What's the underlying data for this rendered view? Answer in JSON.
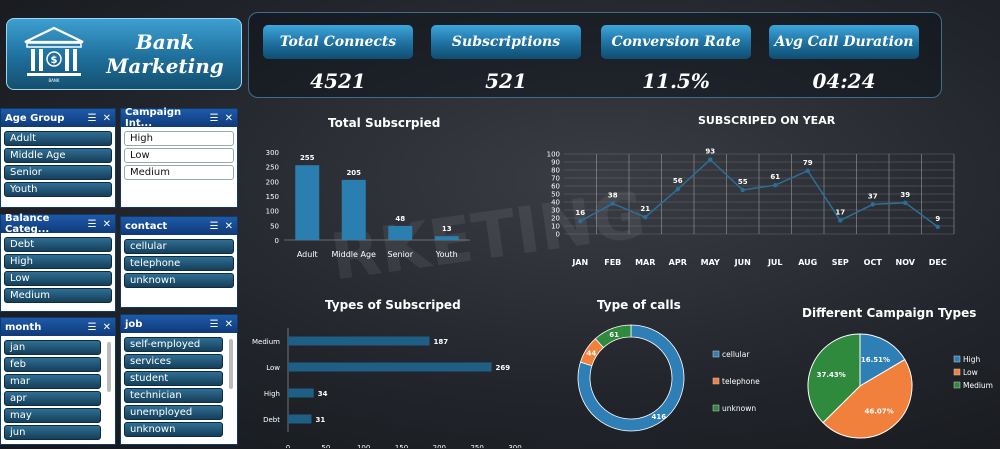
{
  "header": {
    "title_line1": "Bank",
    "title_line2": "Marketing",
    "logo_caption": "BANK"
  },
  "kpis": [
    {
      "label": "Total Connects",
      "value": "4521"
    },
    {
      "label": "Subscriptions",
      "value": "521"
    },
    {
      "label": "Conversion Rate",
      "value": "11.5%"
    },
    {
      "label": "Avg Call Duration",
      "value": "04:24"
    }
  ],
  "slicers": {
    "age_group": {
      "title": "Age Group",
      "items": [
        "Adult",
        "Middle Age",
        "Senior",
        "Youth"
      ]
    },
    "campaign": {
      "title": "Campaign Int...",
      "items": [
        "High",
        "Low",
        "Medium"
      ]
    },
    "balance": {
      "title": "Balance Categ...",
      "items": [
        "Debt",
        "High",
        "Low",
        "Medium"
      ]
    },
    "contact": {
      "title": "contact",
      "items": [
        "cellular",
        "telephone",
        "unknown"
      ]
    },
    "month": {
      "title": "month",
      "items": [
        "jan",
        "feb",
        "mar",
        "apr",
        "may",
        "jun"
      ]
    },
    "job": {
      "title": "job",
      "items": [
        "self-employed",
        "services",
        "student",
        "technician",
        "unemployed",
        "unknown"
      ]
    }
  },
  "chart_data": [
    {
      "type": "bar",
      "title": "Total Subscrpied",
      "categories": [
        "Adult",
        "Middle Age",
        "Senior",
        "Youth"
      ],
      "values": [
        255,
        205,
        48,
        13
      ],
      "ylim": [
        0,
        300
      ],
      "yticks": [
        0,
        50,
        100,
        150,
        200,
        250,
        300
      ]
    },
    {
      "type": "line",
      "title": "SUBSCRIPED ON YEAR",
      "categories": [
        "JAN",
        "FEB",
        "MAR",
        "APR",
        "MAY",
        "JUN",
        "JUL",
        "AUG",
        "SEP",
        "OCT",
        "NOV",
        "DEC"
      ],
      "values": [
        16,
        38,
        21,
        56,
        93,
        55,
        61,
        79,
        17,
        37,
        39,
        9
      ],
      "ylim": [
        0,
        100
      ],
      "yticks": [
        0,
        10,
        20,
        30,
        40,
        50,
        60,
        70,
        80,
        90,
        100
      ]
    },
    {
      "type": "bar",
      "orientation": "horizontal",
      "title": "Types of Subscriped",
      "categories": [
        "Medium",
        "Low",
        "High",
        "Debt"
      ],
      "values": [
        187,
        269,
        34,
        31
      ],
      "xlim": [
        0,
        300
      ],
      "xticks": [
        0,
        50,
        100,
        150,
        200,
        250,
        300
      ]
    },
    {
      "type": "pie",
      "variant": "donut",
      "title": "Type of calls",
      "labels": [
        "cellular",
        "telephone",
        "unknown"
      ],
      "values": [
        416,
        44,
        61
      ],
      "colors": [
        "#2e7fb5",
        "#f0803c",
        "#2f8a3e"
      ]
    },
    {
      "type": "pie",
      "title": "Different Campaign Types",
      "labels": [
        "High",
        "Low",
        "Medium"
      ],
      "values": [
        16.51,
        46.07,
        37.43
      ],
      "value_labels": [
        "16.51%",
        "46.07%",
        "37.43%"
      ],
      "colors": [
        "#2e7fb5",
        "#f0803c",
        "#2f8a3e"
      ]
    }
  ]
}
